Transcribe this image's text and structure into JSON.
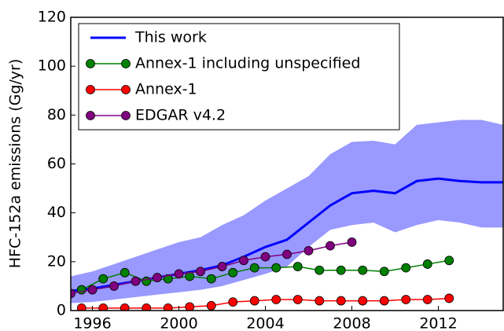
{
  "chart_data": {
    "type": "line",
    "y_label": "HFC-152a emissions (Gg/yr)",
    "xlim": [
      1995,
      2015
    ],
    "xticks": [
      1996,
      2000,
      2004,
      2008,
      2012
    ],
    "ylim": [
      0,
      120
    ],
    "yticks": [
      0,
      20,
      40,
      60,
      80,
      100,
      120
    ],
    "legend": "upper left",
    "series": [
      {
        "name": "This work",
        "color": "#0000ff",
        "band_color": "#9999ff",
        "marker": false,
        "x": [
          1995,
          1996,
          1997,
          1998,
          1999,
          2000,
          2001,
          2002,
          2003,
          2004,
          2005,
          2006,
          2007,
          2008,
          2009,
          2010,
          2011,
          2012,
          2013,
          2014,
          2015
        ],
        "values": [
          8,
          9,
          10.5,
          12,
          13.5,
          15,
          16.5,
          18.5,
          22,
          26,
          29,
          36,
          43,
          48,
          49,
          48,
          53,
          54,
          53,
          52.5,
          52.5
        ],
        "upper": [
          14,
          16,
          19,
          22,
          25,
          28,
          30,
          35,
          39,
          45,
          50,
          55,
          64,
          69,
          69.5,
          68,
          76,
          77,
          78,
          78,
          76
        ],
        "lower": [
          3,
          3.5,
          4.5,
          5.5,
          6.5,
          7.5,
          8.5,
          10,
          12.5,
          15,
          18,
          26,
          33,
          35,
          36,
          32,
          35,
          37,
          36,
          34,
          34
        ]
      },
      {
        "name": "Annex-1 including unspecified",
        "color": "#008000",
        "marker": true,
        "x": [
          1995.5,
          1996.5,
          1997.5,
          1998.5,
          1999.5,
          2000.5,
          2001.5,
          2002.5,
          2003.5,
          2004.5,
          2005.5,
          2006.5,
          2007.5,
          2008.5,
          2009.5,
          2010.5,
          2011.5,
          2012.5
        ],
        "values": [
          8.5,
          13,
          15.5,
          12,
          13,
          14,
          13,
          15.5,
          17.5,
          17.5,
          18,
          16.5,
          16.5,
          16.5,
          16,
          17.5,
          19,
          20.5
        ]
      },
      {
        "name": "Annex-1",
        "color": "#ff0000",
        "marker": true,
        "x": [
          1995.5,
          1996.5,
          1997.5,
          1998.5,
          1999.5,
          2000.5,
          2001.5,
          2002.5,
          2003.5,
          2004.5,
          2005.5,
          2006.5,
          2007.5,
          2008.5,
          2009.5,
          2010.5,
          2011.5,
          2012.5
        ],
        "values": [
          1,
          1,
          1,
          1,
          1,
          1.5,
          2,
          3.5,
          4,
          4.5,
          4.5,
          4,
          4,
          4,
          4,
          4.5,
          4.5,
          5
        ]
      },
      {
        "name": "EDGAR v4.2",
        "color": "#800080",
        "marker": true,
        "x": [
          1995,
          1996,
          1997,
          1998,
          1999,
          2000,
          2001,
          2002,
          2003,
          2004,
          2005,
          2006,
          2007,
          2008
        ],
        "values": [
          7,
          8.5,
          10,
          12,
          13.5,
          15,
          16,
          18,
          20.5,
          22,
          23,
          24.5,
          26.5,
          28
        ]
      }
    ]
  }
}
